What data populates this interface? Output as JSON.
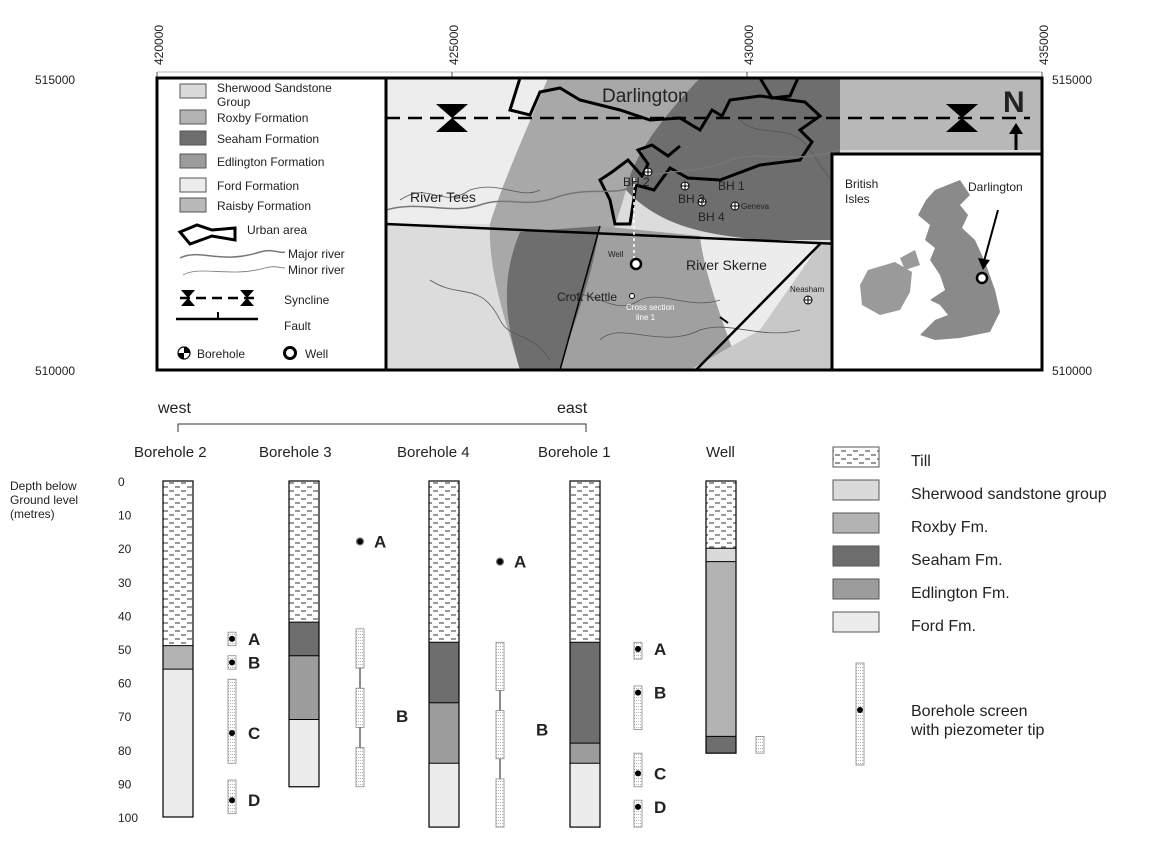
{
  "map": {
    "eastings": [
      "420000",
      "425000",
      "430000",
      "435000"
    ],
    "northings": [
      "515000",
      "510000"
    ],
    "title": "Darlington",
    "north_label": "N",
    "legend": [
      {
        "label": "Sherwood Sandstone Group",
        "line1": "Sherwood Sandstone",
        "line2": "Group",
        "color": "#dadada"
      },
      {
        "label": "Roxby Formation",
        "color": "#b3b3b3"
      },
      {
        "label": "Seaham Formation",
        "color": "#6e6e6e"
      },
      {
        "label": "Edlington Formation",
        "color": "#9c9c9c"
      },
      {
        "label": "Ford Formation",
        "color": "#ececec"
      },
      {
        "label": "Raisby Formation",
        "color": "#b9b9b9"
      }
    ],
    "legend_urban": "Urban area",
    "legend_major_river": "Major river",
    "legend_minor_river": "Minor river",
    "legend_syncline": "Syncline",
    "legend_fault": "Fault",
    "legend_borehole": "Borehole",
    "legend_well": "Well",
    "labels": {
      "river_tees": "River Tees",
      "river_skerne": "River Skerne",
      "croft_kettle": "Croft Kettle",
      "well": "Well",
      "cross_section_1": "Cross section",
      "cross_section_2": "line 1",
      "bh1": "BH 1",
      "bh2": "BH 2",
      "bh3": "BH 3",
      "bh4": "BH 4",
      "geneva": "Geneva",
      "neasham": "Neasham"
    },
    "inset": {
      "label_line1": "British",
      "label_line2": "Isles",
      "town": "Darlington"
    }
  },
  "section": {
    "west": "west",
    "east": "east",
    "depth_label": [
      "Depth below",
      "Ground level",
      "(metres)"
    ],
    "depth_ticks": [
      "0",
      "10",
      "20",
      "30",
      "40",
      "50",
      "60",
      "70",
      "80",
      "90",
      "100"
    ],
    "columns": [
      {
        "name": "Borehole 2",
        "depth": 100,
        "layers": [
          {
            "unit": "till",
            "top": 0,
            "bottom": 49
          },
          {
            "unit": "roxby",
            "top": 49,
            "bottom": 56
          },
          {
            "unit": "ford",
            "top": 56,
            "bottom": 100
          }
        ]
      },
      {
        "name": "Borehole 3",
        "depth": 91,
        "layers": [
          {
            "unit": "till",
            "top": 0,
            "bottom": 42
          },
          {
            "unit": "seaham",
            "top": 42,
            "bottom": 52
          },
          {
            "unit": "edlington",
            "top": 52,
            "bottom": 71
          },
          {
            "unit": "ford",
            "top": 71,
            "bottom": 91
          }
        ]
      },
      {
        "name": "Borehole 4",
        "depth": 103,
        "layers": [
          {
            "unit": "till",
            "top": 0,
            "bottom": 48
          },
          {
            "unit": "seaham",
            "top": 48,
            "bottom": 66
          },
          {
            "unit": "edlington",
            "top": 66,
            "bottom": 84
          },
          {
            "unit": "ford",
            "top": 84,
            "bottom": 103
          }
        ]
      },
      {
        "name": "Borehole 1",
        "depth": 103,
        "layers": [
          {
            "unit": "till",
            "top": 0,
            "bottom": 48
          },
          {
            "unit": "seaham",
            "top": 48,
            "bottom": 78
          },
          {
            "unit": "edlington",
            "top": 78,
            "bottom": 84
          },
          {
            "unit": "ford",
            "top": 84,
            "bottom": 103
          }
        ]
      },
      {
        "name": "Well",
        "depth": 81,
        "layers": [
          {
            "unit": "till",
            "top": 0,
            "bottom": 20
          },
          {
            "unit": "sherwood",
            "top": 20,
            "bottom": 24
          },
          {
            "unit": "roxby",
            "top": 24,
            "bottom": 76
          },
          {
            "unit": "seaham",
            "top": 76,
            "bottom": 81
          }
        ]
      }
    ],
    "piezometers": [
      {
        "bh": 0,
        "label": "A",
        "top": 45,
        "bottom": 49,
        "tip": 47
      },
      {
        "bh": 0,
        "label": "B",
        "top": 52,
        "bottom": 56,
        "tip": 54
      },
      {
        "bh": 0,
        "label": "C",
        "top": 59,
        "bottom": 84,
        "tip": 75
      },
      {
        "bh": 0,
        "label": "D",
        "top": 89,
        "bottom": 99,
        "tip": 95
      },
      {
        "bh": 1,
        "label": "A",
        "top": 18,
        "bottom": 18,
        "tip": 18
      },
      {
        "bh": 1,
        "label": "B",
        "top": 44,
        "bottom": 91,
        "tip": null,
        "label_depth": 70
      },
      {
        "bh": 2,
        "label": "A",
        "top": 24,
        "bottom": 24,
        "tip": 24
      },
      {
        "bh": 2,
        "label": "B",
        "top": 48,
        "bottom": 103,
        "tip": null,
        "label_depth": 74
      },
      {
        "bh": 3,
        "label": "A",
        "top": 48,
        "bottom": 53,
        "tip": 50
      },
      {
        "bh": 3,
        "label": "B",
        "top": 61,
        "bottom": 74,
        "tip": 63
      },
      {
        "bh": 3,
        "label": "C",
        "top": 81,
        "bottom": 91,
        "tip": 87
      },
      {
        "bh": 3,
        "label": "D",
        "top": 95,
        "bottom": 103,
        "tip": 97
      },
      {
        "bh": 4,
        "label": "",
        "top": 76,
        "bottom": 81,
        "tip": null
      }
    ]
  },
  "key": [
    {
      "unit": "till",
      "label": "Till",
      "color": "#ffffff"
    },
    {
      "unit": "sherwood",
      "label": "Sherwood sandstone group",
      "color": "#dadada"
    },
    {
      "unit": "roxby",
      "label": "Roxby Fm.",
      "color": "#b3b3b3"
    },
    {
      "unit": "seaham",
      "label": "Seaham Fm.",
      "color": "#6e6e6e"
    },
    {
      "unit": "edlington",
      "label": "Edlington Fm.",
      "color": "#9c9c9c"
    },
    {
      "unit": "ford",
      "label": "Ford Fm.",
      "color": "#ececec"
    }
  ],
  "key_screen": [
    "Borehole screen",
    "with piezometer tip"
  ]
}
